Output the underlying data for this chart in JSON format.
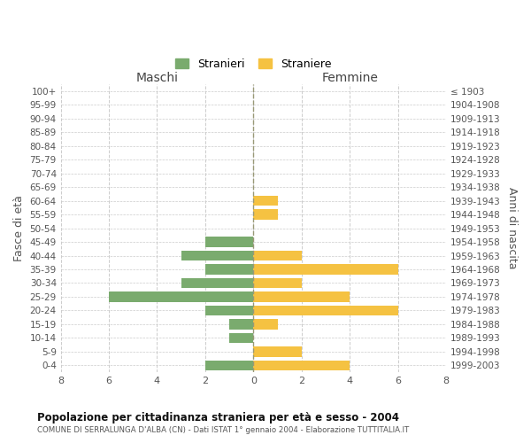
{
  "age_groups": [
    "0-4",
    "5-9",
    "10-14",
    "15-19",
    "20-24",
    "25-29",
    "30-34",
    "35-39",
    "40-44",
    "45-49",
    "50-54",
    "55-59",
    "60-64",
    "65-69",
    "70-74",
    "75-79",
    "80-84",
    "85-89",
    "90-94",
    "95-99",
    "100+"
  ],
  "birth_years": [
    "1999-2003",
    "1994-1998",
    "1989-1993",
    "1984-1988",
    "1979-1983",
    "1974-1978",
    "1969-1973",
    "1964-1968",
    "1959-1963",
    "1954-1958",
    "1949-1953",
    "1944-1948",
    "1939-1943",
    "1934-1938",
    "1929-1933",
    "1924-1928",
    "1919-1923",
    "1914-1918",
    "1909-1913",
    "1904-1908",
    "≤ 1903"
  ],
  "males": [
    2,
    0,
    1,
    1,
    2,
    6,
    3,
    2,
    3,
    2,
    0,
    0,
    0,
    0,
    0,
    0,
    0,
    0,
    0,
    0,
    0
  ],
  "females": [
    4,
    2,
    0,
    1,
    6,
    4,
    2,
    6,
    2,
    0,
    0,
    1,
    1,
    0,
    0,
    0,
    0,
    0,
    0,
    0,
    0
  ],
  "male_color": "#7aab6e",
  "female_color": "#f5c242",
  "title": "Popolazione per cittadinanza straniera per età e sesso - 2004",
  "subtitle": "COMUNE DI SERRALUNGA D'ALBA (CN) - Dati ISTAT 1° gennaio 2004 - Elaborazione TUTTITALIA.IT",
  "ylabel_left": "Fasce di età",
  "ylabel_right": "Anni di nascita",
  "xlabel_maschi": "Maschi",
  "xlabel_femmine": "Femmine",
  "legend_males": "Stranieri",
  "legend_females": "Straniere",
  "xlim": 8,
  "bar_height": 0.75,
  "background_color": "#ffffff",
  "grid_color": "#cccccc"
}
